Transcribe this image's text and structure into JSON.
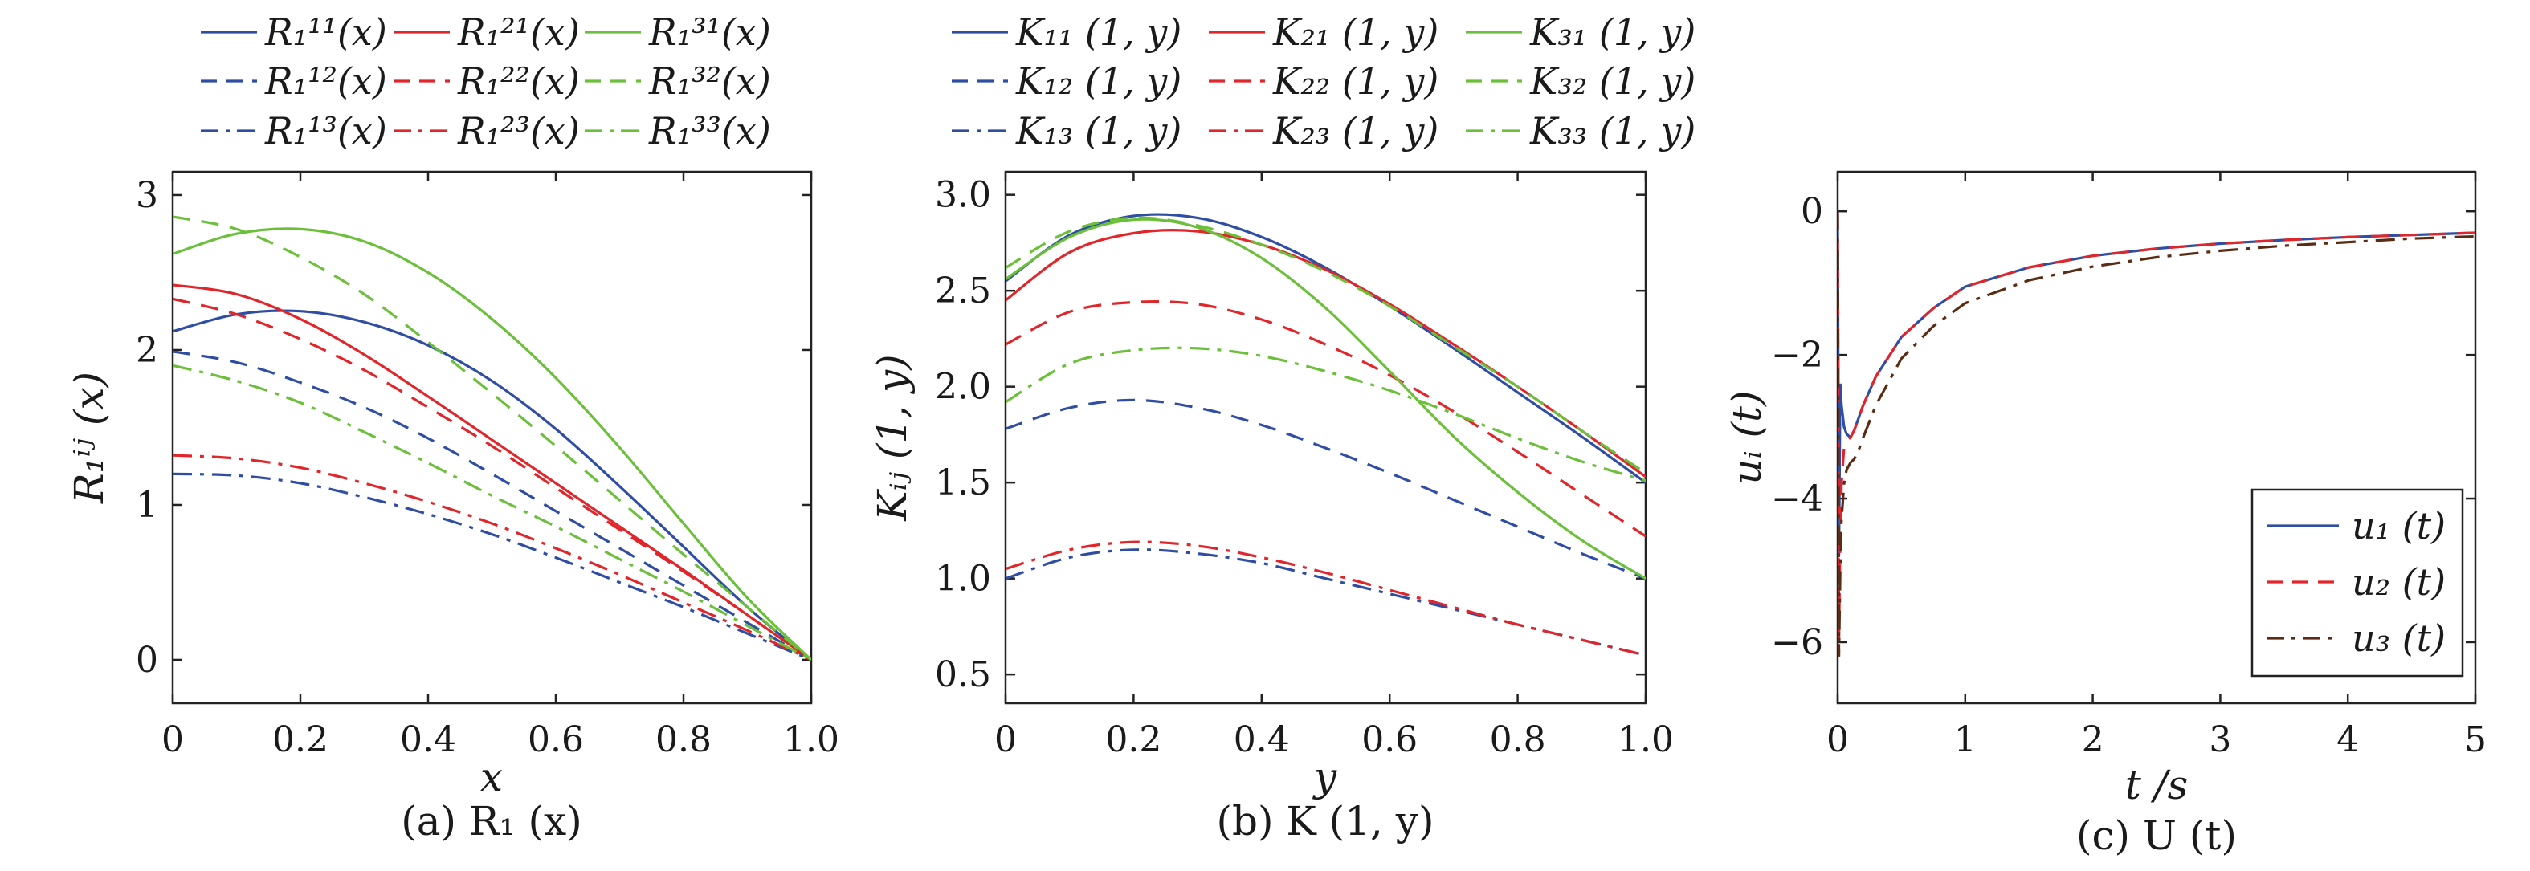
{
  "colors": {
    "blue": "#2f4ea3",
    "red": "#e0262b",
    "green": "#6cbf3a",
    "brown": "#5b2c14"
  },
  "chart_data": [
    {
      "type": "line",
      "caption": "(a)  R₁ (x)",
      "xlabel": "x",
      "ylabel": "R₁ⁱʲ (x)",
      "xlim": [
        0,
        1.0
      ],
      "ylim": [
        -0.28,
        3.15
      ],
      "xticks": [
        0,
        0.2,
        0.4,
        0.6,
        0.8,
        1.0
      ],
      "xtick_labels": [
        "0",
        "0.2",
        "0.4",
        "0.6",
        "0.8",
        "1.0"
      ],
      "yticks": [
        0,
        1,
        2,
        3
      ],
      "ytick_labels": [
        "0",
        "1",
        "2",
        "3"
      ],
      "legend_position": "above",
      "grid": false,
      "x": [
        0,
        0.1,
        0.2,
        0.3,
        0.4,
        0.5,
        0.6,
        0.7,
        0.8,
        0.9,
        1.0
      ],
      "series": [
        {
          "name": "R₁¹¹(x)",
          "color": "blue",
          "dash": "solid",
          "values": [
            2.12,
            2.23,
            2.25,
            2.18,
            2.03,
            1.8,
            1.49,
            1.12,
            0.73,
            0.34,
            0
          ]
        },
        {
          "name": "R₁¹²(x)",
          "color": "blue",
          "dash": "dash",
          "values": [
            1.99,
            1.92,
            1.79,
            1.63,
            1.43,
            1.2,
            0.96,
            0.72,
            0.48,
            0.24,
            0
          ]
        },
        {
          "name": "R₁¹³(x)",
          "color": "blue",
          "dash": "dashdot",
          "values": [
            1.2,
            1.19,
            1.14,
            1.05,
            0.94,
            0.81,
            0.66,
            0.5,
            0.34,
            0.17,
            0
          ]
        },
        {
          "name": "R₁²¹(x)",
          "color": "red",
          "dash": "solid",
          "values": [
            2.42,
            2.36,
            2.2,
            1.97,
            1.7,
            1.42,
            1.14,
            0.86,
            0.58,
            0.29,
            0
          ]
        },
        {
          "name": "R₁²²(x)",
          "color": "red",
          "dash": "dash",
          "values": [
            2.33,
            2.23,
            2.07,
            1.87,
            1.63,
            1.38,
            1.11,
            0.84,
            0.57,
            0.29,
            0
          ]
        },
        {
          "name": "R₁²³(x)",
          "color": "red",
          "dash": "dashdot",
          "values": [
            1.32,
            1.3,
            1.24,
            1.14,
            1.02,
            0.88,
            0.72,
            0.55,
            0.37,
            0.19,
            0
          ]
        },
        {
          "name": "R₁³¹(x)",
          "color": "green",
          "dash": "solid",
          "values": [
            2.62,
            2.75,
            2.78,
            2.7,
            2.5,
            2.2,
            1.82,
            1.37,
            0.88,
            0.4,
            0
          ]
        },
        {
          "name": "R₁³²(x)",
          "color": "green",
          "dash": "dash",
          "values": [
            2.86,
            2.78,
            2.6,
            2.36,
            2.05,
            1.72,
            1.38,
            1.03,
            0.68,
            0.34,
            0
          ]
        },
        {
          "name": "R₁³³(x)",
          "color": "green",
          "dash": "dashdot",
          "values": [
            1.9,
            1.8,
            1.66,
            1.47,
            1.27,
            1.06,
            0.86,
            0.65,
            0.44,
            0.22,
            0
          ]
        }
      ]
    },
    {
      "type": "line",
      "caption": "(b)  K (1, y)",
      "xlabel": "y",
      "ylabel": "Kᵢⱼ (1, y)",
      "xlim": [
        0,
        1.0
      ],
      "ylim": [
        0.35,
        3.12
      ],
      "xticks": [
        0,
        0.2,
        0.4,
        0.6,
        0.8,
        1.0
      ],
      "xtick_labels": [
        "0",
        "0.2",
        "0.4",
        "0.6",
        "0.8",
        "1.0"
      ],
      "yticks": [
        0.5,
        1.0,
        1.5,
        2.0,
        2.5,
        3.0
      ],
      "ytick_labels": [
        "0.5",
        "1.0",
        "1.5",
        "2.0",
        "2.5",
        "3.0"
      ],
      "legend_position": "above",
      "grid": false,
      "x": [
        0,
        0.1,
        0.2,
        0.3,
        0.4,
        0.5,
        0.6,
        0.7,
        0.8,
        0.9,
        1.0
      ],
      "series": [
        {
          "name": "K₁₁ (1, y)",
          "color": "blue",
          "dash": "solid",
          "values": [
            2.55,
            2.79,
            2.89,
            2.88,
            2.78,
            2.62,
            2.42,
            2.2,
            1.97,
            1.74,
            1.5
          ]
        },
        {
          "name": "K₁₂ (1, y)",
          "color": "blue",
          "dash": "dash",
          "values": [
            1.78,
            1.89,
            1.93,
            1.89,
            1.8,
            1.68,
            1.55,
            1.41,
            1.27,
            1.13,
            1.0
          ]
        },
        {
          "name": "K₁₃ (1, y)",
          "color": "blue",
          "dash": "dashdot",
          "values": [
            1.0,
            1.11,
            1.15,
            1.13,
            1.08,
            1.0,
            0.92,
            0.84,
            0.76,
            0.68,
            0.6
          ]
        },
        {
          "name": "K₂₁ (1, y)",
          "color": "red",
          "dash": "solid",
          "values": [
            2.45,
            2.7,
            2.8,
            2.81,
            2.74,
            2.61,
            2.43,
            2.22,
            2.0,
            1.77,
            1.53
          ]
        },
        {
          "name": "K₂₂ (1, y)",
          "color": "red",
          "dash": "dash",
          "values": [
            2.22,
            2.39,
            2.44,
            2.43,
            2.35,
            2.22,
            2.06,
            1.87,
            1.66,
            1.44,
            1.22
          ]
        },
        {
          "name": "K₂₃ (1, y)",
          "color": "red",
          "dash": "dashdot",
          "values": [
            1.05,
            1.15,
            1.19,
            1.17,
            1.11,
            1.03,
            0.94,
            0.85,
            0.76,
            0.68,
            0.6
          ]
        },
        {
          "name": "K₃₁ (1, y)",
          "color": "green",
          "dash": "solid",
          "values": [
            2.56,
            2.78,
            2.87,
            2.83,
            2.67,
            2.41,
            2.08,
            1.74,
            1.45,
            1.2,
            1.0
          ]
        },
        {
          "name": "K₃₂ (1, y)",
          "color": "green",
          "dash": "dash",
          "values": [
            2.62,
            2.81,
            2.88,
            2.84,
            2.74,
            2.6,
            2.42,
            2.21,
            2.0,
            1.77,
            1.55
          ]
        },
        {
          "name": "K₃₃ (1, y)",
          "color": "green",
          "dash": "dashdot",
          "values": [
            1.92,
            2.12,
            2.19,
            2.2,
            2.16,
            2.08,
            1.98,
            1.86,
            1.73,
            1.61,
            1.51
          ]
        }
      ]
    },
    {
      "type": "line",
      "caption": "(c)  U (t)",
      "xlabel": "t /s",
      "ylabel": "uᵢ (t)",
      "xlim": [
        0,
        5
      ],
      "ylim": [
        -6.85,
        0.55
      ],
      "xticks": [
        0,
        1,
        2,
        3,
        4,
        5
      ],
      "xtick_labels": [
        "0",
        "1",
        "2",
        "3",
        "4",
        "5"
      ],
      "yticks": [
        0,
        -2,
        -4,
        -6
      ],
      "ytick_labels": [
        "0",
        "−2",
        "−4",
        "−6"
      ],
      "legend_position": "lower right",
      "grid": false,
      "x": [
        0,
        0.01,
        0.02,
        0.03,
        0.05,
        0.07,
        0.1,
        0.13,
        0.17,
        0.2,
        0.3,
        0.5,
        0.75,
        1.0,
        1.5,
        2.0,
        2.5,
        3.0,
        3.5,
        4.0,
        4.5,
        5.0
      ],
      "series": [
        {
          "name": "u₁ (t)",
          "color": "blue",
          "dash": "solid",
          "values": [
            0,
            -4.8,
            -2.4,
            -2.7,
            -3.0,
            -3.1,
            -3.15,
            -3.05,
            -2.85,
            -2.7,
            -2.3,
            -1.75,
            -1.35,
            -1.05,
            -0.78,
            -0.62,
            -0.52,
            -0.45,
            -0.4,
            -0.36,
            -0.33,
            -0.3
          ]
        },
        {
          "name": "u₂ (t)",
          "color": "red",
          "dash": "dash",
          "values": [
            0,
            -6.0,
            -4.5,
            -3.8,
            -3.3,
            -3.2,
            -3.15,
            -3.05,
            -2.85,
            -2.7,
            -2.3,
            -1.75,
            -1.35,
            -1.05,
            -0.78,
            -0.62,
            -0.52,
            -0.45,
            -0.4,
            -0.36,
            -0.33,
            -0.3
          ]
        },
        {
          "name": "u₃ (t)",
          "color": "brown",
          "dash": "dashdot",
          "values": [
            0,
            -6.2,
            -5.0,
            -4.3,
            -3.8,
            -3.6,
            -3.5,
            -3.45,
            -3.3,
            -3.15,
            -2.7,
            -2.05,
            -1.6,
            -1.28,
            -0.96,
            -0.77,
            -0.64,
            -0.55,
            -0.48,
            -0.43,
            -0.38,
            -0.35
          ]
        }
      ]
    }
  ]
}
